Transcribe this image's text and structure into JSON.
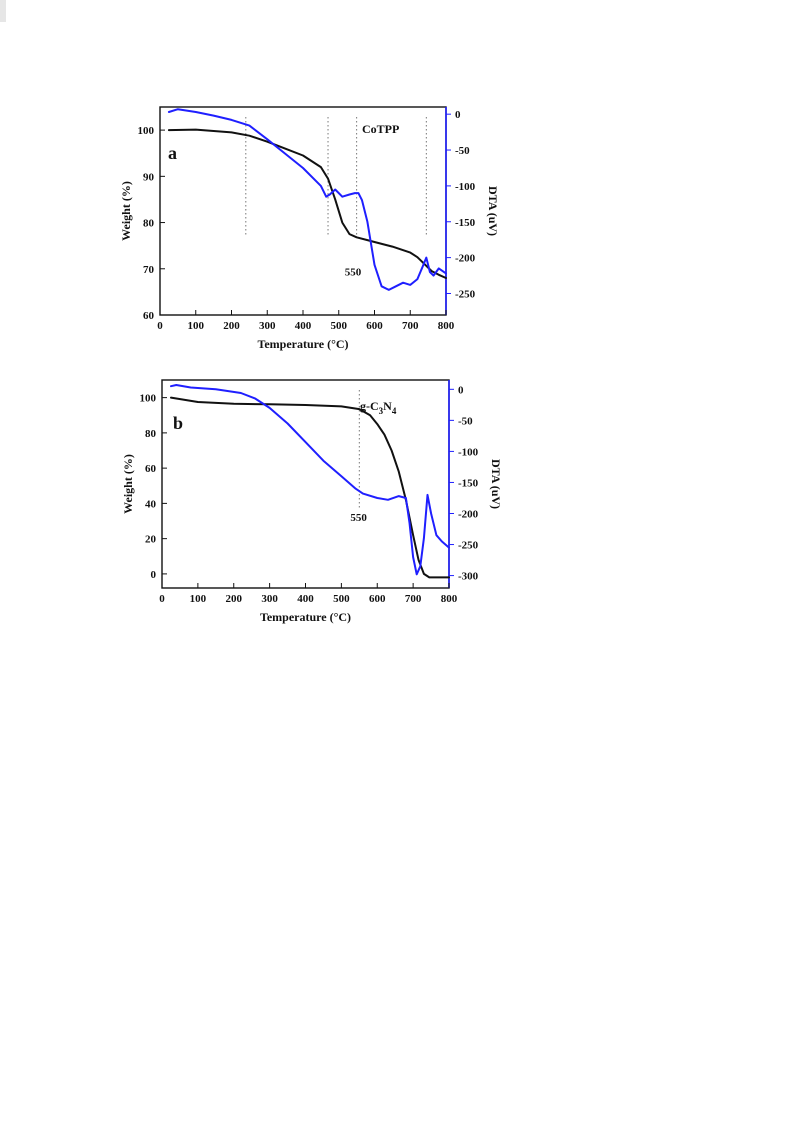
{
  "chart_data": [
    {
      "type": "line",
      "panel_label": "a",
      "sample": {
        "text": "CoTPP",
        "sub": "",
        "tail": ""
      },
      "xlabel": "Temperature (°C)",
      "ylabel_left": "Weight (%)",
      "ylabel_right": "DTA (uV)",
      "xlim": [
        0,
        800
      ],
      "xticks": [
        0,
        100,
        200,
        300,
        400,
        500,
        600,
        700,
        800
      ],
      "ylim_left": [
        60,
        105
      ],
      "yticks_left": [
        60,
        70,
        80,
        90,
        100
      ],
      "ylim_right": [
        -280,
        10
      ],
      "yticks_right": [
        -250,
        -200,
        -150,
        -100,
        -50,
        0
      ],
      "annotation": {
        "text": "550",
        "x": 540,
        "y_left": 68.5
      },
      "marker_lines_x": [
        240,
        470,
        550,
        745
      ],
      "grid": false,
      "series": [
        {
          "axis": "left",
          "color": "#111111",
          "x": [
            25,
            100,
            200,
            250,
            300,
            350,
            400,
            450,
            470,
            490,
            510,
            530,
            550,
            580,
            600,
            650,
            700,
            720,
            740,
            760,
            780,
            800
          ],
          "y": [
            100,
            100.1,
            99.5,
            98.8,
            97.5,
            96,
            94.5,
            92,
            89.5,
            85,
            80,
            77.5,
            76.8,
            76.2,
            75.8,
            74.8,
            73.5,
            72.5,
            71,
            69.5,
            68.7,
            68
          ]
        },
        {
          "axis": "right",
          "color": "#1f1fff",
          "x": [
            25,
            50,
            100,
            150,
            200,
            250,
            300,
            350,
            400,
            450,
            465,
            475,
            490,
            510,
            530,
            545,
            555,
            565,
            580,
            600,
            620,
            640,
            660,
            680,
            700,
            720,
            735,
            745,
            755,
            765,
            780,
            800
          ],
          "y": [
            3,
            7,
            3,
            -2,
            -8,
            -16,
            -35,
            -55,
            -75,
            -100,
            -115,
            -112,
            -105,
            -115,
            -112,
            -110,
            -110,
            -120,
            -150,
            -210,
            -240,
            -245,
            -240,
            -235,
            -238,
            -230,
            -212,
            -200,
            -220,
            -225,
            -215,
            -222
          ]
        }
      ]
    },
    {
      "type": "line",
      "panel_label": "b",
      "sample": {
        "text": "g-C",
        "sub": "3",
        "tail": "N"
      },
      "sample_sub2": "4",
      "xlabel": "Temperature (°C)",
      "ylabel_left": "Weight (%)",
      "ylabel_right": "DTA (uV)",
      "xlim": [
        0,
        800
      ],
      "xticks": [
        0,
        100,
        200,
        300,
        400,
        500,
        600,
        700,
        800
      ],
      "ylim_left": [
        -8,
        110
      ],
      "yticks_left": [
        0,
        20,
        40,
        60,
        80,
        100
      ],
      "ylim_right": [
        -320,
        15
      ],
      "yticks_right": [
        -300,
        -250,
        -200,
        -150,
        -100,
        -50,
        0
      ],
      "annotation": {
        "text": "550",
        "x": 548,
        "y_left": 30
      },
      "marker_lines_x": [
        550
      ],
      "grid": false,
      "series": [
        {
          "axis": "left",
          "color": "#111111",
          "x": [
            25,
            100,
            200,
            300,
            400,
            500,
            550,
            580,
            600,
            620,
            640,
            660,
            680,
            700,
            715,
            730,
            745,
            800
          ],
          "y": [
            100,
            97.5,
            96.5,
            96.2,
            95.8,
            95,
            93.5,
            90,
            85,
            79,
            70,
            58,
            42,
            22,
            8,
            0,
            -2,
            -2
          ]
        },
        {
          "axis": "right",
          "color": "#1f1fff",
          "x": [
            25,
            40,
            80,
            150,
            220,
            260,
            300,
            350,
            400,
            450,
            500,
            540,
            560,
            600,
            630,
            660,
            680,
            690,
            700,
            710,
            720,
            730,
            740,
            750,
            765,
            780,
            800
          ],
          "y": [
            5,
            7,
            3,
            0,
            -6,
            -15,
            -30,
            -55,
            -85,
            -115,
            -140,
            -160,
            -168,
            -175,
            -178,
            -172,
            -175,
            -215,
            -270,
            -298,
            -285,
            -240,
            -170,
            -200,
            -235,
            -245,
            -255
          ]
        }
      ]
    }
  ]
}
